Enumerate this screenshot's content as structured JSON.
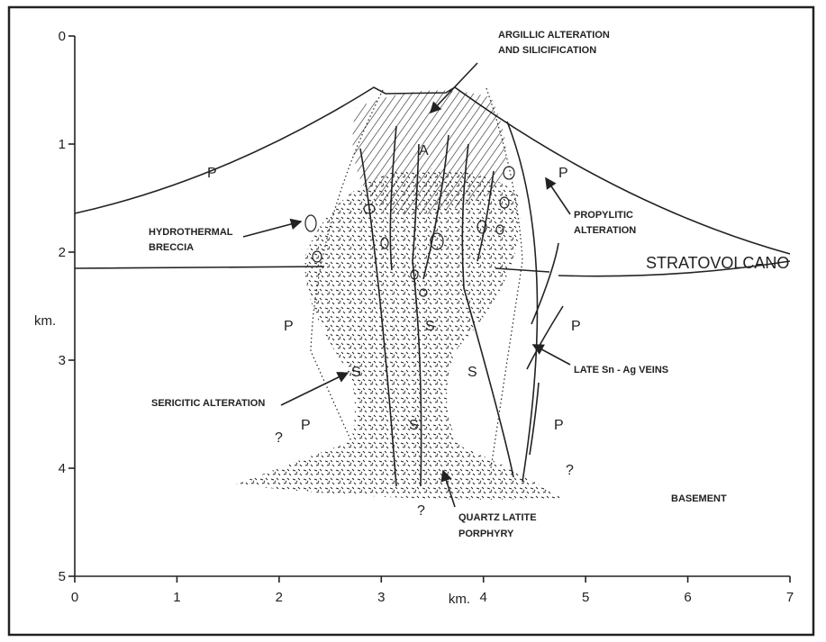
{
  "axes": {
    "x_ticks": [
      "0",
      "1",
      "2",
      "3",
      "4",
      "5",
      "6",
      "7"
    ],
    "x_label": "km.",
    "y_ticks": [
      "0",
      "1",
      "2",
      "3",
      "4",
      "5"
    ],
    "y_label": "km."
  },
  "labels": [
    "ARGILLIC ALTERATION",
    "AND SILICIFICATION",
    "A",
    "P",
    "P",
    "PROPYLITIC",
    "ALTERATION",
    "HYDROTHERMAL",
    "BRECCIA",
    "STRATOVOLCANO",
    "P",
    "S",
    "P",
    "S",
    "S",
    "SERICITIC ALTERATION",
    "LATE Sn - Ag VEINS",
    "P",
    "S",
    "P",
    "?",
    "?",
    "?",
    "BASEMENT",
    "QUARTZ LATITE",
    "PORPHYRY"
  ]
}
